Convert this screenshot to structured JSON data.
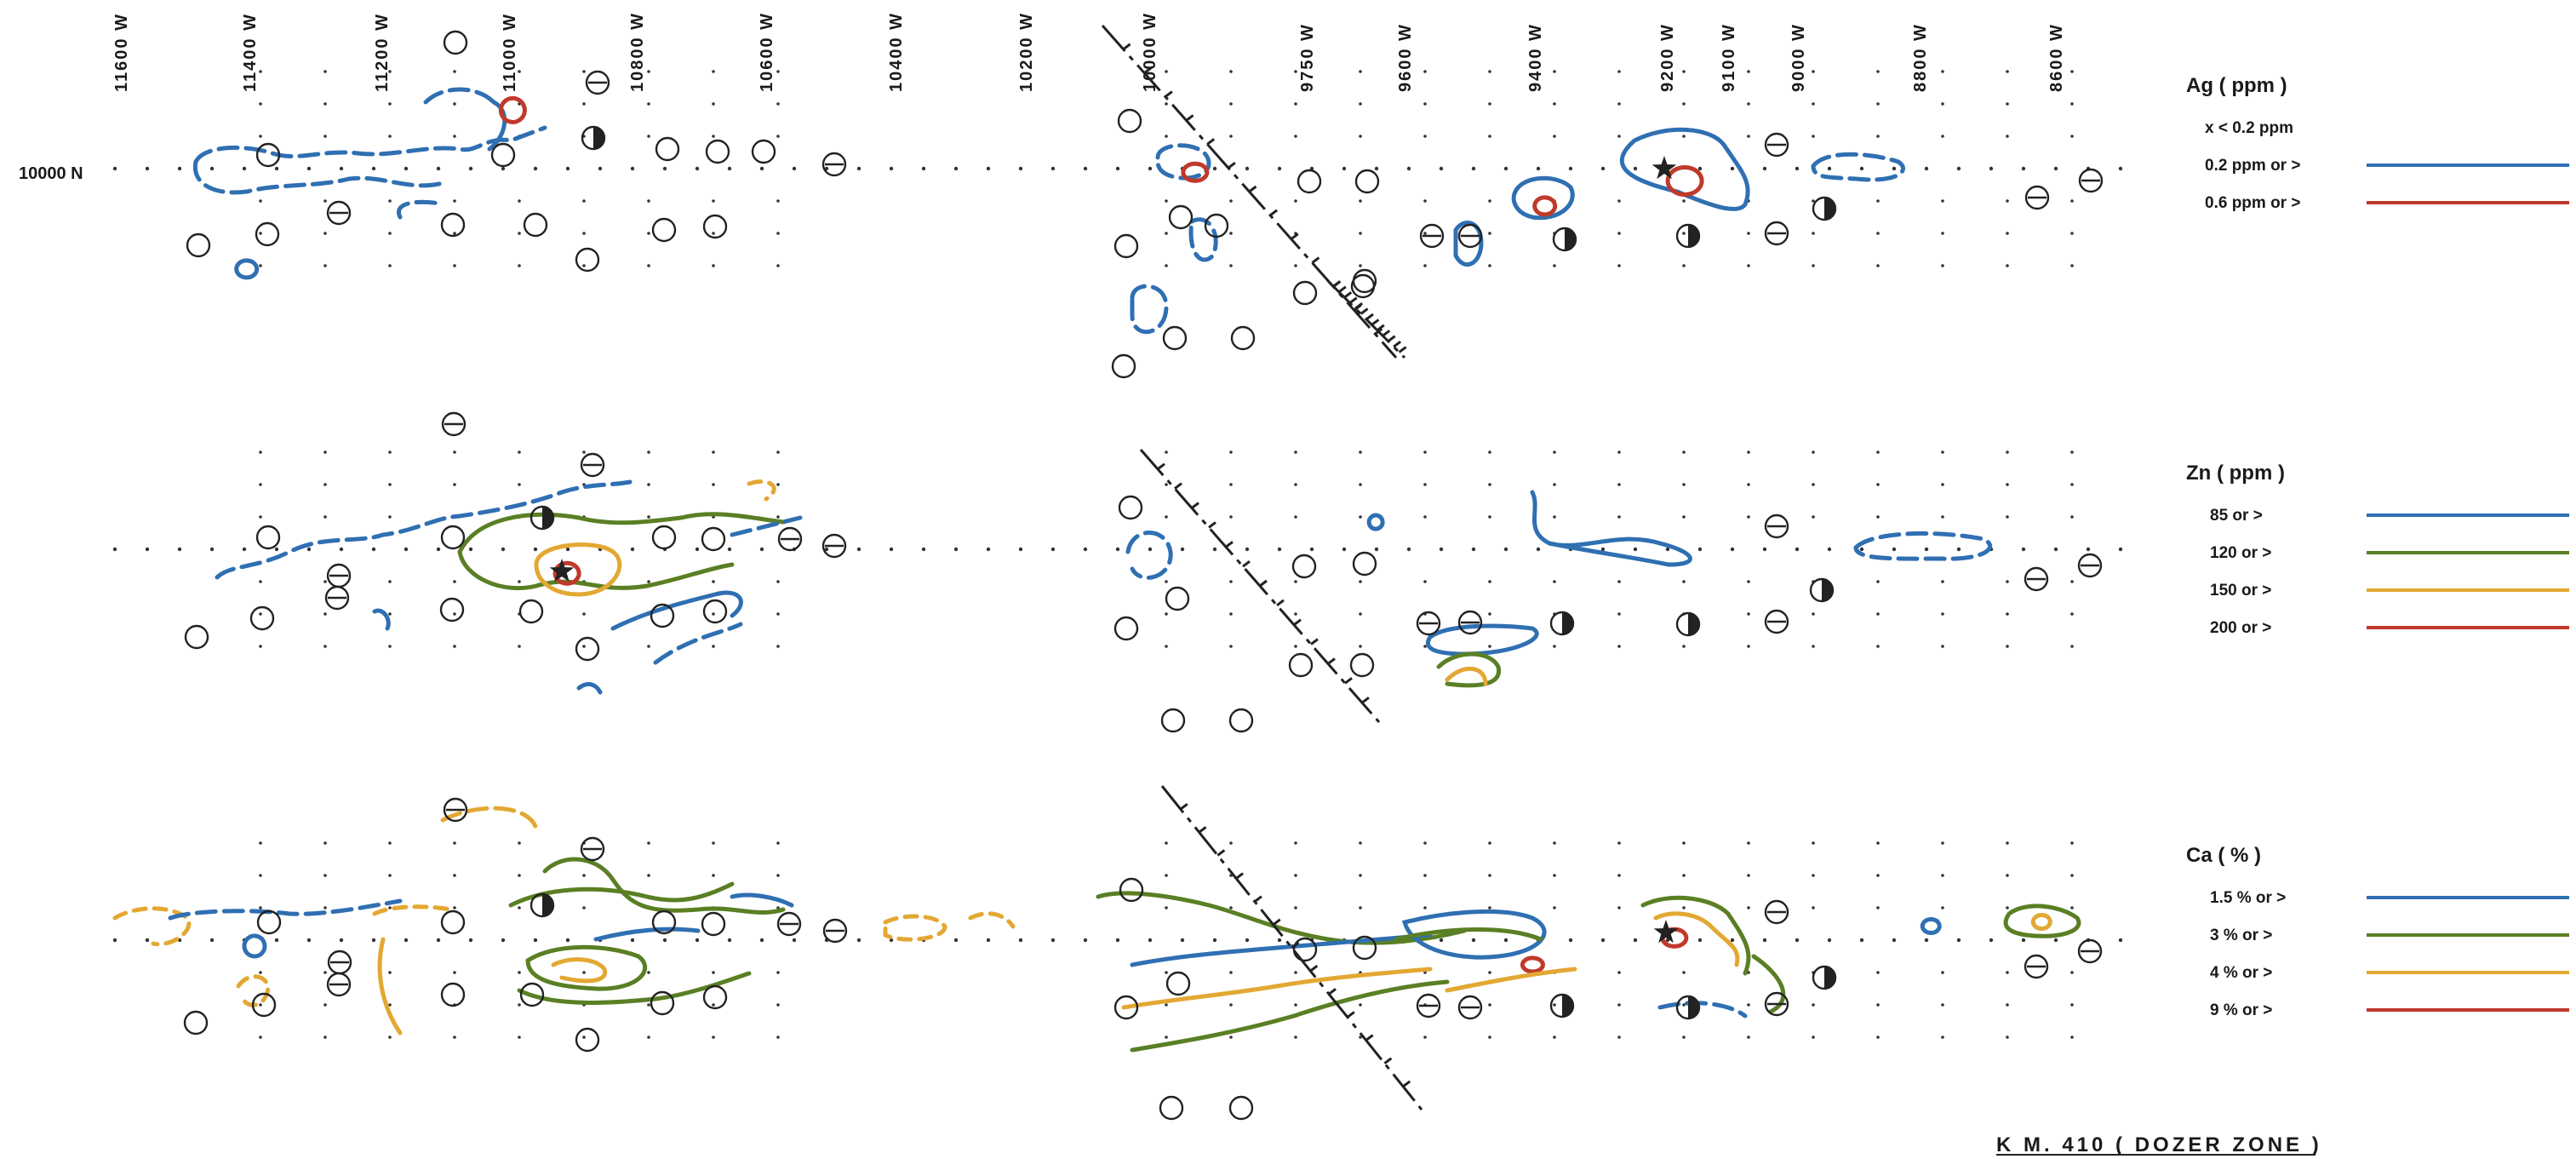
{
  "columns": [
    "11600 W",
    "11400 W",
    "11200 W",
    "11000 W",
    "10800 W",
    "10600 W",
    "10400 W",
    "10200 W",
    "10000 W",
    "9750 W",
    "9600 W",
    "9400 W",
    "9200 W",
    "9100 W",
    "9000 W",
    "8800 W",
    "8600 W"
  ],
  "row_label": "10000 N",
  "legends": [
    {
      "title": "Ag    ( ppm )",
      "items": [
        {
          "text": "x  <   0.2     ppm",
          "color": ""
        },
        {
          "text": "0.2  ppm   or   >",
          "color": "#2f6fb2"
        },
        {
          "text": "0.6  ppm   or   >",
          "color": "#c0392b"
        }
      ]
    },
    {
      "title": "Zn    ( ppm )",
      "items": [
        {
          "text": "85    or   >",
          "color": "#2f6fb2"
        },
        {
          "text": "120   or   >",
          "color": "#5a7f24"
        },
        {
          "text": "150   or   >",
          "color": "#e3a833"
        },
        {
          "text": "200   or   >",
          "color": "#c0392b"
        }
      ]
    },
    {
      "title": "Ca   ( % )",
      "items": [
        {
          "text": "1.5 %   or   >",
          "color": "#2f6fb2"
        },
        {
          "text": "3 %      or   >",
          "color": "#5a7f24"
        },
        {
          "text": "4 %      or   >",
          "color": "#e3a833"
        },
        {
          "text": "9 %      or   >",
          "color": "#c0392b"
        }
      ]
    }
  ],
  "footer": "K M.  410      ( DOZER     ZONE )",
  "colors": {
    "blue": "#2f6fb2",
    "green": "#5a7f24",
    "orange": "#e3a833",
    "red": "#c0392b",
    "ink": "#222222"
  },
  "symbols": [
    "open-circle",
    "circle-with-bar",
    "half-filled-circle",
    "star"
  ]
}
